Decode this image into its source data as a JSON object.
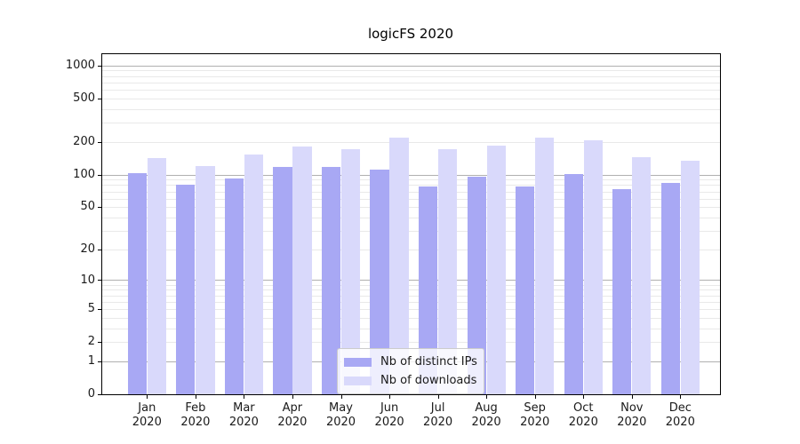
{
  "title": "logicFS 2020",
  "legend": {
    "position": "lower center",
    "items": [
      {
        "label": "Nb of distinct IPs",
        "color": "#a8a8f4"
      },
      {
        "label": "Nb of downloads",
        "color": "#d9d9fb"
      }
    ]
  },
  "colors": {
    "bar_distinct_ips": "#a8a8f4",
    "bar_downloads": "#d9d9fb",
    "grid_major": "#b0b0b0",
    "grid_minor": "#e9e9e9",
    "spine": "#000000",
    "background": "#ffffff"
  },
  "chart_data": {
    "type": "bar",
    "title": "logicFS 2020",
    "categories": [
      "Jan 2020",
      "Feb 2020",
      "Mar 2020",
      "Apr 2020",
      "May 2020",
      "Jun 2020",
      "Jul 2020",
      "Aug 2020",
      "Sep 2020",
      "Oct 2020",
      "Nov 2020",
      "Dec 2020"
    ],
    "x_tick_labels": [
      [
        "Jan",
        "2020"
      ],
      [
        "Feb",
        "2020"
      ],
      [
        "Mar",
        "2020"
      ],
      [
        "Apr",
        "2020"
      ],
      [
        "May",
        "2020"
      ],
      [
        "Jun",
        "2020"
      ],
      [
        "Jul",
        "2020"
      ],
      [
        "Aug",
        "2020"
      ],
      [
        "Sep",
        "2020"
      ],
      [
        "Oct",
        "2020"
      ],
      [
        "Nov",
        "2020"
      ],
      [
        "Dec",
        "2020"
      ]
    ],
    "series": [
      {
        "name": "Nb of distinct IPs",
        "color": "#a8a8f4",
        "values": [
          104,
          81,
          92,
          117,
          118,
          112,
          78,
          96,
          78,
          102,
          73,
          84
        ]
      },
      {
        "name": "Nb of downloads",
        "color": "#d9d9fb",
        "values": [
          141,
          121,
          154,
          183,
          172,
          220,
          173,
          186,
          221,
          206,
          146,
          134
        ]
      }
    ],
    "xlabel": "",
    "ylabel": "",
    "yscale": "log(value+1)",
    "ylim": [
      0,
      1300
    ],
    "yticks": [
      0,
      1,
      2,
      5,
      10,
      20,
      50,
      100,
      200,
      500,
      1000
    ],
    "grid": "horizontal major+minor",
    "legend_position": "lower center"
  }
}
